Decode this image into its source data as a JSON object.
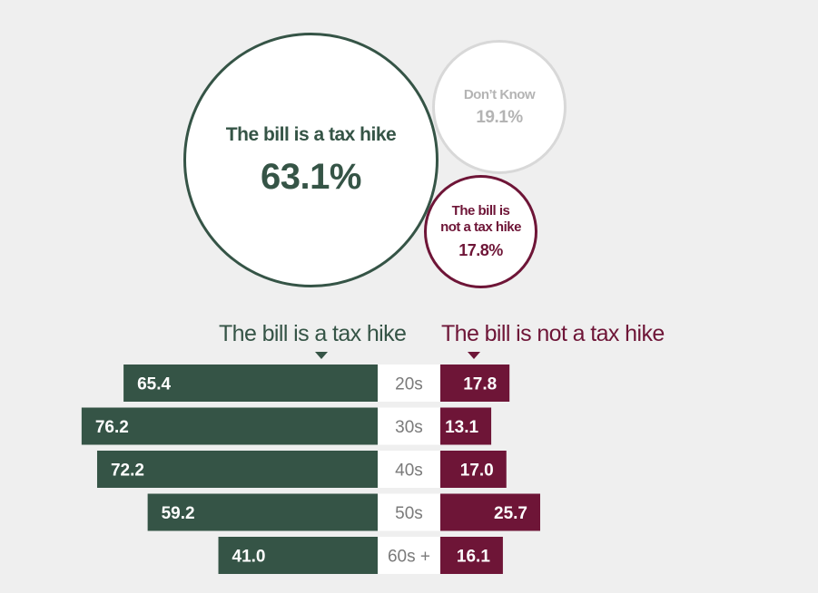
{
  "bubbles": {
    "main": {
      "label": "The bill is a tax hike",
      "value": "63.1%"
    },
    "dont_know": {
      "label": "Don’t Know",
      "value": "19.1%"
    },
    "not": {
      "label_line1": "The bill is",
      "label_line2": "not a tax hike",
      "value": "17.8%"
    }
  },
  "headers": {
    "left": "The bill is a tax hike",
    "right": "The bill is not a tax hike"
  },
  "colors": {
    "tax_hike": "#355446",
    "not_tax_hike": "#6e1537",
    "dont_know": "#d8d8d8",
    "age_box": "#ffffff",
    "age_text": "#7a7a7a",
    "background": "#efefef"
  },
  "chart_data": [
    {
      "type": "pie",
      "categories": [
        "The bill is a tax hike",
        "Don’t Know",
        "The bill is not a tax hike"
      ],
      "values": [
        63.1,
        19.1,
        17.8
      ],
      "unit": "%"
    },
    {
      "type": "bar",
      "categories": [
        "20s",
        "30s",
        "40s",
        "50s",
        "60s +"
      ],
      "series": [
        {
          "name": "The bill is a tax hike",
          "values": [
            65.4,
            76.2,
            72.2,
            59.2,
            41.0
          ],
          "labels": [
            "65.4",
            "76.2",
            "72.2",
            "59.2",
            "41.0"
          ]
        },
        {
          "name": "The bill is not a tax hike",
          "values": [
            17.8,
            13.1,
            17.0,
            25.7,
            16.1
          ],
          "labels": [
            "17.8",
            "13.1",
            "17.0",
            "25.7",
            "16.1"
          ]
        }
      ]
    }
  ]
}
